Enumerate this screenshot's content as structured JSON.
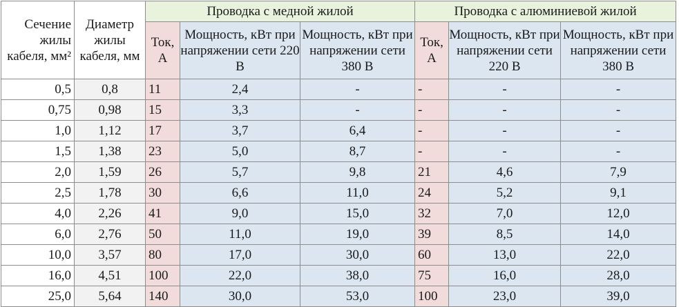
{
  "header": {
    "section": "Сечение жилы кабеля, мм²",
    "diameter": "Диаметр жилы кабеля, мм",
    "copper_group": "Проводка с медной жилой",
    "aluminum_group": "Проводка с алюминиевой жилой",
    "current": "Ток, А",
    "power_220": "Мощность, кВт при напряжении сети 220 В",
    "power_380": "Мощность, кВт при напряжении сети 380 В"
  },
  "rows": [
    {
      "section": "0,5",
      "diameter": "0,8",
      "cu_current": "11",
      "cu_p220": "2,4",
      "cu_p380": "-",
      "al_current": "-",
      "al_p220": "-",
      "al_p380": "-"
    },
    {
      "section": "0,75",
      "diameter": "0,98",
      "cu_current": "15",
      "cu_p220": "3,3",
      "cu_p380": "-",
      "al_current": "-",
      "al_p220": "-",
      "al_p380": "-"
    },
    {
      "section": "1,0",
      "diameter": "1,12",
      "cu_current": "17",
      "cu_p220": "3,7",
      "cu_p380": "6,4",
      "al_current": "-",
      "al_p220": "-",
      "al_p380": "-"
    },
    {
      "section": "1,5",
      "diameter": "1,38",
      "cu_current": "23",
      "cu_p220": "5,0",
      "cu_p380": "8,7",
      "al_current": "-",
      "al_p220": "-",
      "al_p380": "-"
    },
    {
      "section": "2,0",
      "diameter": "1,59",
      "cu_current": "26",
      "cu_p220": "5,7",
      "cu_p380": "9,8",
      "al_current": "21",
      "al_p220": "4,6",
      "al_p380": "7,9"
    },
    {
      "section": "2,5",
      "diameter": "1,78",
      "cu_current": "30",
      "cu_p220": "6,6",
      "cu_p380": "11,0",
      "al_current": "24",
      "al_p220": "5,2",
      "al_p380": "9,1"
    },
    {
      "section": "4,0",
      "diameter": "2,26",
      "cu_current": "41",
      "cu_p220": "9,0",
      "cu_p380": "15,0",
      "al_current": "32",
      "al_p220": "7,0",
      "al_p380": "12,0"
    },
    {
      "section": "6,0",
      "diameter": "2,76",
      "cu_current": "50",
      "cu_p220": "11,0",
      "cu_p380": "19,0",
      "al_current": "39",
      "al_p220": "8,5",
      "al_p380": "14,0"
    },
    {
      "section": "10,0",
      "diameter": "3,57",
      "cu_current": "80",
      "cu_p220": "17,0",
      "cu_p380": "30,0",
      "al_current": "60",
      "al_p220": "13,0",
      "al_p380": "22,0"
    },
    {
      "section": "16,0",
      "diameter": "4,51",
      "cu_current": "100",
      "cu_p220": "22,0",
      "cu_p380": "38,0",
      "al_current": "75",
      "al_p220": "16,0",
      "al_p380": "28,0"
    },
    {
      "section": "25,0",
      "diameter": "5,64",
      "cu_current": "140",
      "cu_p220": "30,0",
      "cu_p380": "53,0",
      "al_current": "100",
      "al_p220": "23,0",
      "al_p380": "39,0"
    }
  ],
  "colors": {
    "header_green": "#e9f2dd",
    "current_pink": "#f2dcdb",
    "power_blue": "#dce6f1",
    "diameter_grey": "#f2f2f2",
    "border": "#8c8c8c"
  }
}
